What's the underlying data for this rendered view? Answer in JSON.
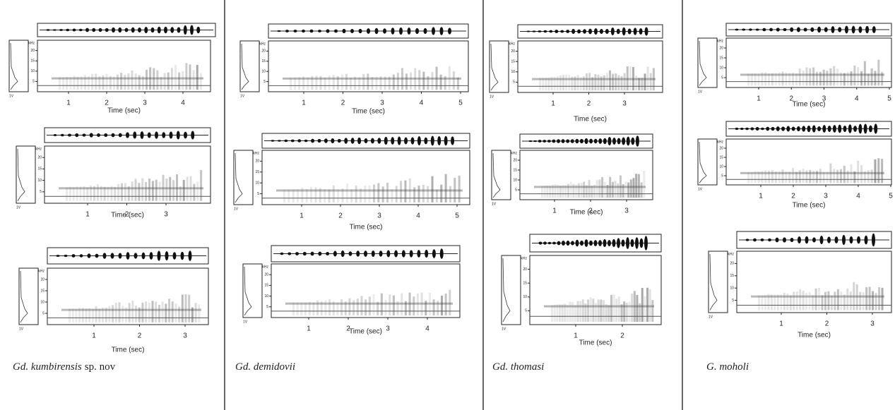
{
  "columns": [
    {
      "species": {
        "genus": "Gd. kumbirensis",
        "suffix": "sp. nov"
      },
      "panels": [
        {
          "xticks": [
            1,
            2,
            3,
            4
          ],
          "yticks": [
            5,
            10,
            15,
            20
          ],
          "ylim": [
            0,
            25
          ],
          "x_label": "Time (sec)",
          "y_unit": "kHz",
          "amp_label": "1V"
        },
        {
          "xticks": [
            1,
            2,
            3
          ],
          "yticks": [
            5,
            10,
            15,
            20
          ],
          "ylim": [
            0,
            25
          ],
          "x_label": "Time (sec)",
          "y_unit": "kHz",
          "amp_label": "1V"
        },
        {
          "xticks": [
            1,
            2,
            3
          ],
          "yticks": [
            5,
            10,
            15,
            20
          ],
          "ylim": [
            0,
            25
          ],
          "x_label": "Time (sec)",
          "y_unit": "kHz",
          "amp_label": "1V"
        }
      ]
    },
    {
      "species": {
        "genus": "Gd. demidovii"
      },
      "panels": [
        {
          "xticks": [
            1,
            2,
            3,
            4,
            5
          ],
          "yticks": [
            5,
            10,
            15,
            20
          ],
          "ylim": [
            0,
            25
          ],
          "x_label": "Time (sec)",
          "y_unit": "kHz",
          "amp_label": "1V"
        },
        {
          "xticks": [
            1,
            2,
            3,
            4,
            5
          ],
          "yticks": [
            5,
            10,
            15,
            20
          ],
          "ylim": [
            0,
            25
          ],
          "x_label": "Time (sec)",
          "y_unit": "kHz",
          "amp_label": "1V"
        },
        {
          "xticks": [
            1,
            2,
            3,
            4
          ],
          "yticks": [
            5,
            10,
            15,
            20
          ],
          "ylim": [
            0,
            25
          ],
          "x_label": "Time (sec)",
          "y_unit": "kHz",
          "amp_label": "1V"
        }
      ]
    },
    {
      "species": {
        "genus": "Gd. thomasi"
      },
      "panels": [
        {
          "xticks": [
            1,
            2,
            3
          ],
          "yticks": [
            5,
            10,
            15,
            20
          ],
          "ylim": [
            0,
            25
          ],
          "x_label": "Time (sec)",
          "y_unit": "kHz",
          "amp_label": "1V"
        },
        {
          "xticks": [
            1,
            2,
            3
          ],
          "yticks": [
            5,
            10,
            15,
            20
          ],
          "ylim": [
            0,
            25
          ],
          "x_label": "Time (sec)",
          "y_unit": "kHz",
          "amp_label": "1V"
        },
        {
          "xticks": [
            1,
            2
          ],
          "yticks": [
            5,
            10,
            15,
            20
          ],
          "ylim": [
            0,
            25
          ],
          "x_label": "Time (sec)",
          "y_unit": "kHz",
          "amp_label": "1V"
        }
      ]
    },
    {
      "species": {
        "genus": "G. moholi"
      },
      "panels": [
        {
          "xticks": [
            1,
            2,
            3,
            4,
            5
          ],
          "yticks": [
            5,
            10,
            15,
            20
          ],
          "ylim": [
            0,
            25
          ],
          "x_label": "Time (sec)",
          "y_unit": "kHz",
          "amp_label": "1V"
        },
        {
          "xticks": [
            1,
            2,
            3,
            4,
            5
          ],
          "yticks": [
            5,
            10,
            15,
            20
          ],
          "ylim": [
            0,
            25
          ],
          "x_label": "Time (sec)",
          "y_unit": "kHz",
          "amp_label": "1V"
        },
        {
          "xticks": [
            1,
            2,
            3
          ],
          "yticks": [
            5,
            10,
            15,
            20
          ],
          "ylim": [
            0,
            25
          ],
          "x_label": "Time (sec)",
          "y_unit": "kHz",
          "amp_label": "1V"
        }
      ]
    }
  ]
}
